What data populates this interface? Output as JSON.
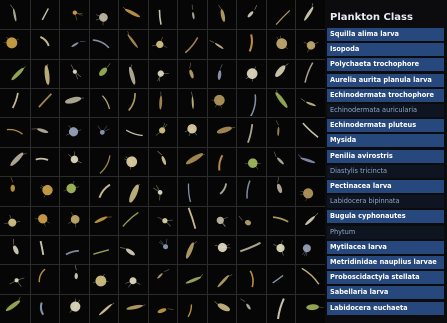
{
  "panel": {
    "title": "Plankton Class",
    "classes": [
      {
        "label": "Squilla alima larva",
        "style": "active"
      },
      {
        "label": "Isopoda",
        "style": "active"
      },
      {
        "label": "Polychaeta trochophore",
        "style": "active"
      },
      {
        "label": "Aurelia aurita planula larva",
        "style": "active"
      },
      {
        "label": "Echinodermata trochophore",
        "style": "active"
      },
      {
        "label": "Echinodermata auricularia",
        "style": "dim"
      },
      {
        "label": "Echinodermata pluteus",
        "style": "active"
      },
      {
        "label": "Mysida",
        "style": "active"
      },
      {
        "label": "Penilia avirostris",
        "style": "active"
      },
      {
        "label": "Diastylis tricincta",
        "style": "dim"
      },
      {
        "label": "Pectinacea larva",
        "style": "active"
      },
      {
        "label": "Labidocera bipinnata",
        "style": "dim"
      },
      {
        "label": "Bugula cyphonautes",
        "style": "active"
      },
      {
        "label": "Phytum",
        "style": "dim"
      },
      {
        "label": "Mytilacea larva",
        "style": "active"
      },
      {
        "label": "Metridinidae nauplius larvae",
        "style": "active"
      },
      {
        "label": "Proboscidactyla stellata",
        "style": "active"
      },
      {
        "label": "Sabellaria larva",
        "style": "active"
      },
      {
        "label": "Labidocera euchaeta",
        "style": "active"
      }
    ]
  },
  "grid": {
    "rows": 11,
    "cols": 11
  },
  "colors": {
    "active_row": "#27487c",
    "dim_row": "#0f1520",
    "active_text": "#ffffff",
    "dim_text": "#8fa5c8",
    "specimen_palette": [
      "#d9c98a",
      "#c7c0a8",
      "#e8e2c4",
      "#b79a5e",
      "#8fa0b8",
      "#d4a64a",
      "#a8c060",
      "#e6d7a8",
      "#9aa9c2",
      "#c8b070"
    ]
  }
}
